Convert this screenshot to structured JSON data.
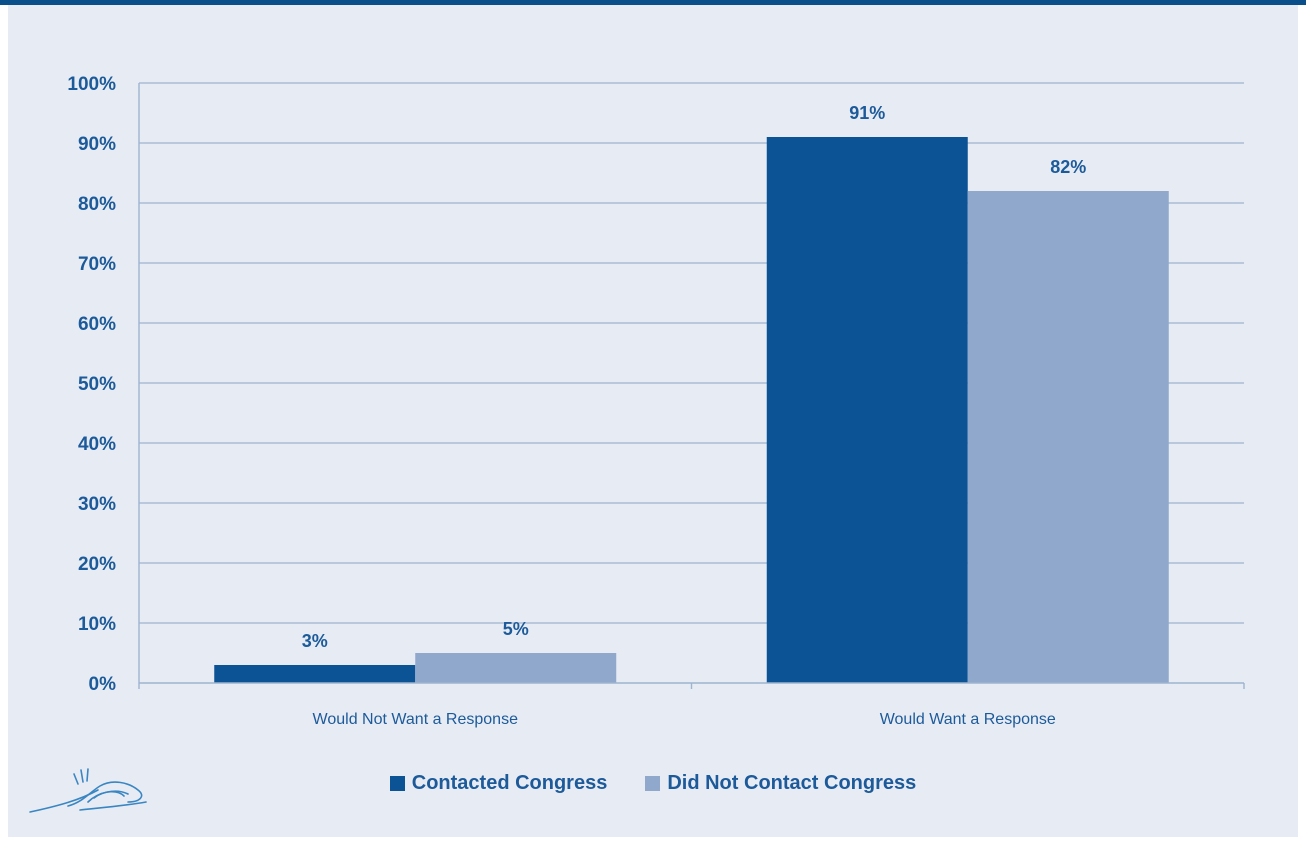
{
  "chart_data": {
    "type": "bar",
    "categories": [
      "Would Not Want a Response",
      "Would Want a Response"
    ],
    "series": [
      {
        "name": "Contacted Congress",
        "values": [
          3,
          91
        ],
        "labels": [
          "3%",
          "91%"
        ],
        "color": "#0b5394"
      },
      {
        "name": "Did Not Contact Congress",
        "values": [
          5,
          82
        ],
        "labels": [
          "5%",
          "82%"
        ],
        "color": "#8fa8cc"
      }
    ],
    "ylim": [
      0,
      100
    ],
    "yticks": [
      "0%",
      "10%",
      "20%",
      "30%",
      "40%",
      "50%",
      "60%",
      "70%",
      "80%",
      "90%",
      "100%"
    ],
    "grid": true,
    "legend_position": "bottom"
  },
  "colors": {
    "text": "#1d5a9a",
    "panel_background": "#e7ecf4",
    "gridline": "#9eb3cf",
    "top_bar": "#0b4f8a"
  },
  "logo": {
    "icon": "hands-arches-logo-icon"
  }
}
